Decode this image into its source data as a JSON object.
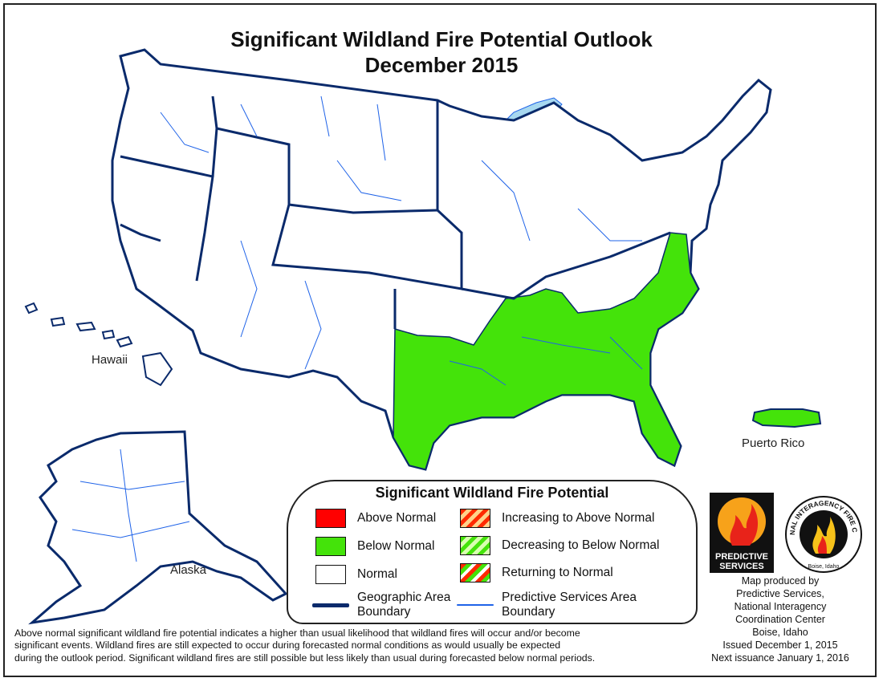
{
  "title": {
    "line1": "Significant Wildland Fire Potential Outlook",
    "line2": "December 2015"
  },
  "map": {
    "region_labels": {
      "hawaii": "Hawaii",
      "alaska": "Alaska",
      "puerto_rico": "Puerto Rico"
    },
    "areas_below_normal": [
      "Southern Area (TX, OK, AR, LA, MS, AL, GA, FL, SC, NC, TN, VA)",
      "Puerto Rico"
    ],
    "colors": {
      "below_normal": "#44e30a",
      "above_normal": "#ff0000",
      "normal": "#ffffff",
      "geographic_area_boundary": "#0a2a6b",
      "predictive_services_boundary": "#1f63e8",
      "water": "#a7d8f0"
    }
  },
  "legend": {
    "title": "Significant Wildland Fire Potential",
    "above_normal": "Above Normal",
    "below_normal": "Below Normal",
    "normal": "Normal",
    "increasing": "Increasing to Above Normal",
    "decreasing": "Decreasing to Below Normal",
    "returning": "Returning to Normal",
    "geo_boundary_1": "Geographic Area",
    "geo_boundary_2": "Boundary",
    "psa_boundary_1": "Predictive Services Area",
    "psa_boundary_2": "Boundary"
  },
  "footnote": {
    "line1": "Above normal significant wildland fire potential indicates a higher than usual likelihood that wildland fires will occur and/or become",
    "line2": "significant events.  Wildland fires are still expected to occur during forecasted normal conditions as would usually be expected",
    "line3": "during the outlook period.  Significant wildland fires are still possible but less likely than usual during forecasted below normal periods."
  },
  "credits": {
    "line1": "Map produced by",
    "line2": "Predictive Services,",
    "line3": "National Interagency",
    "line4": "Coordination Center",
    "line5": "Boise, Idaho",
    "issued": "Issued December 1, 2015",
    "next": "Next issuance January 1, 2016"
  },
  "logos": {
    "predictive_services_line1": "PREDICTIVE",
    "predictive_services_line2": "SERVICES",
    "nifc_ring": "NATIONAL INTERAGENCY FIRE CENTER",
    "nifc_city": "Boise, Idaho"
  }
}
